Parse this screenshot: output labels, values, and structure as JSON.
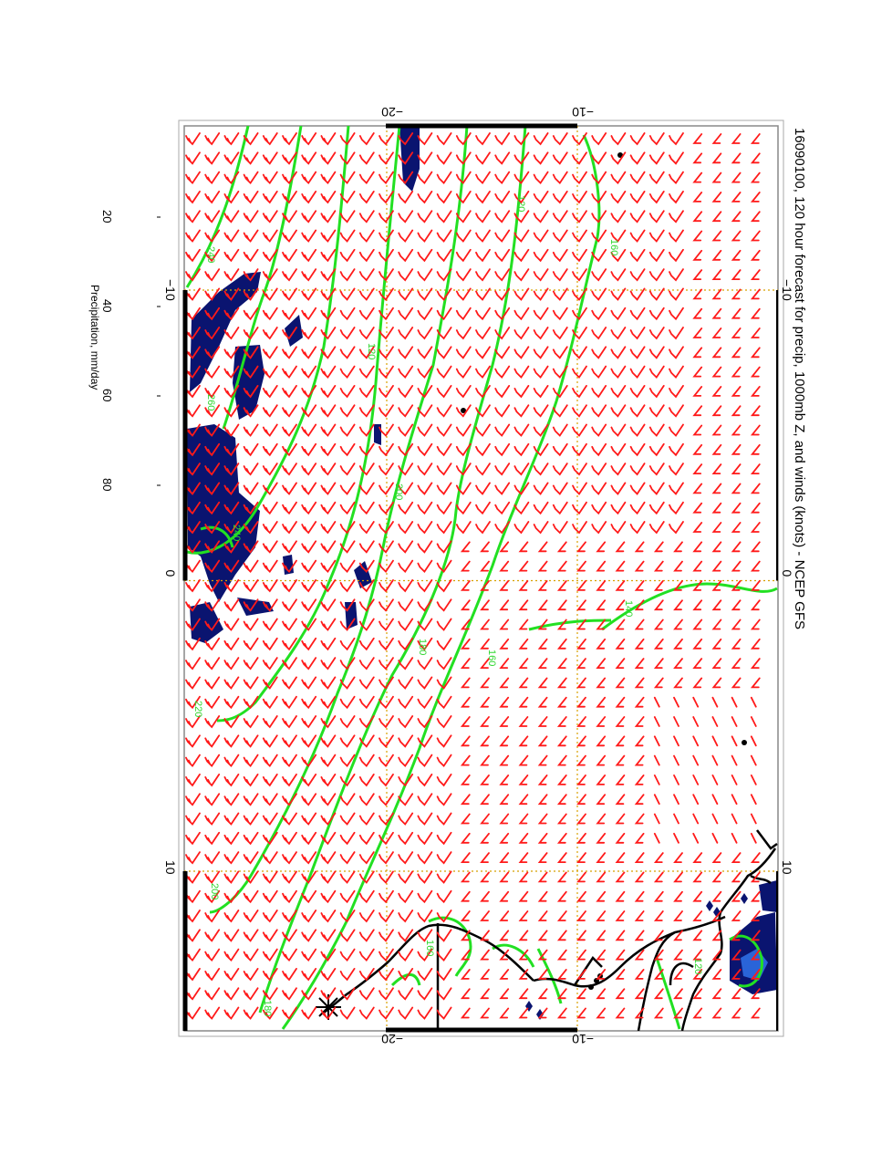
{
  "title": "16090100, 120 hour forecast for precip, 1000mb Z, and winds (knots) - NCEP GFS",
  "colorbar": {
    "label": "Precipitation, mm/day",
    "ticks": [
      "20",
      "40",
      "60",
      "80"
    ],
    "tick_values": [
      20,
      40,
      60,
      80
    ],
    "range": [
      0,
      100
    ],
    "colors": [
      "#0a1470",
      "#1a40c8",
      "#1aa8d8",
      "#20c8c0",
      "#40c878",
      "#a0c830",
      "#d8c810",
      "#e89a10",
      "#e04010",
      "#c81010",
      "#700808"
    ]
  },
  "axes": {
    "lon_ticks": [
      "−10",
      "0",
      "10"
    ],
    "lon_tick_values": [
      -10,
      0,
      10
    ],
    "lat_ticks": [
      "−20",
      "−10"
    ],
    "lat_tick_values": [
      -20,
      -10
    ],
    "lon_range": [
      -17,
      17
    ],
    "lat_range": [
      -25,
      5
    ]
  },
  "contour_labels": {
    "values": [
      "240",
      "160",
      "120",
      "200",
      "260",
      "240",
      "180",
      "160",
      "140",
      "220",
      "200",
      "180",
      "160",
      "120",
      "120"
    ]
  },
  "colors": {
    "wind_barb": "#ff1a1a",
    "contour": "#22e022",
    "grid": "#d8a000",
    "coast": "#000000",
    "precip": "#0a1470"
  }
}
